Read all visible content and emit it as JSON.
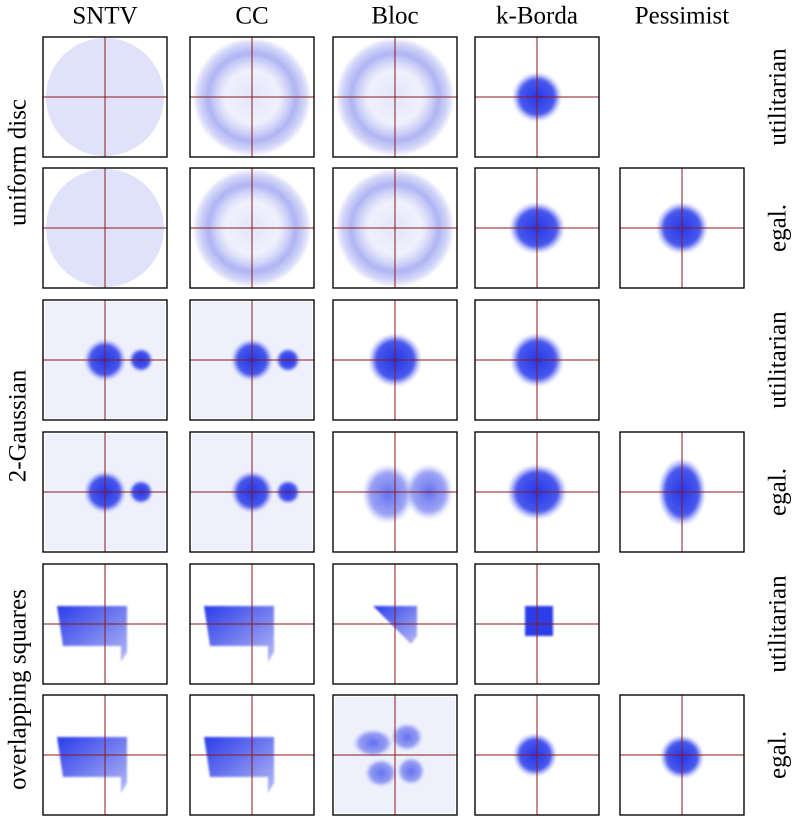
{
  "columns": [
    "SNTV",
    "CC",
    "Bloc",
    "k-Borda",
    "Pessimist"
  ],
  "row_groups": [
    "uniform disc",
    "2-Gaussian",
    "overlapping squares"
  ],
  "row_labels": [
    "utilitarian",
    "egal.",
    "utilitarian",
    "egal.",
    "utilitarian",
    "egal."
  ]
}
